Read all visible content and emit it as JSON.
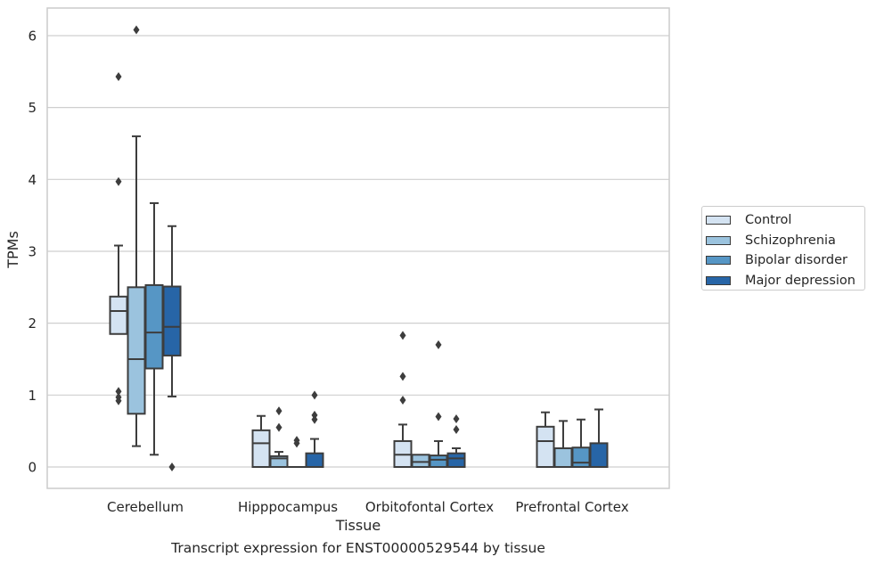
{
  "caption": "Transcript expression for ENST00000529544 by tissue",
  "chart_data": {
    "type": "boxplot",
    "xlabel": "Tissue",
    "ylabel": "TPMs",
    "ylim": [
      -0.3,
      6.4
    ],
    "yticks": [
      0,
      1,
      2,
      3,
      4,
      5,
      6
    ],
    "grid": "horizontal",
    "legend_position": "right",
    "categories": [
      "Cerebellum",
      "Hipppocampus",
      "Orbitofontal Cortex",
      "Prefrontal Cortex"
    ],
    "series": [
      {
        "name": "Control",
        "color": "#d4e3f2",
        "boxes": [
          {
            "whislo": 1.85,
            "q1": 1.85,
            "med": 2.17,
            "q3": 2.37,
            "whishi": 3.08,
            "fliers": [
              5.43,
              3.97,
              1.05,
              0.97,
              0.92
            ]
          },
          {
            "whislo": 0.0,
            "q1": 0.0,
            "med": 0.33,
            "q3": 0.51,
            "whishi": 0.71,
            "fliers": []
          },
          {
            "whislo": 0.0,
            "q1": 0.0,
            "med": 0.17,
            "q3": 0.36,
            "whishi": 0.59,
            "fliers": [
              1.83,
              1.26,
              0.93
            ]
          },
          {
            "whislo": 0.0,
            "q1": 0.0,
            "med": 0.36,
            "q3": 0.56,
            "whishi": 0.76,
            "fliers": []
          }
        ]
      },
      {
        "name": "Schizophrenia",
        "color": "#9bc3de",
        "boxes": [
          {
            "whislo": 0.29,
            "q1": 0.74,
            "med": 1.5,
            "q3": 2.5,
            "whishi": 4.6,
            "fliers": [
              6.08
            ]
          },
          {
            "whislo": 0.0,
            "q1": 0.0,
            "med": 0.12,
            "q3": 0.15,
            "whishi": 0.21,
            "fliers": [
              0.78,
              0.55
            ]
          },
          {
            "whislo": 0.0,
            "q1": 0.0,
            "med": 0.07,
            "q3": 0.17,
            "whishi": 0.17,
            "fliers": []
          },
          {
            "whislo": 0.0,
            "q1": 0.0,
            "med": 0.0,
            "q3": 0.26,
            "whishi": 0.64,
            "fliers": []
          }
        ]
      },
      {
        "name": "Bipolar disorder",
        "color": "#5696c5",
        "boxes": [
          {
            "whislo": 0.17,
            "q1": 1.37,
            "med": 1.87,
            "q3": 2.53,
            "whishi": 3.67,
            "fliers": []
          },
          {
            "whislo": 0.0,
            "q1": 0.0,
            "med": 0.0,
            "q3": 0.0,
            "whishi": 0.0,
            "fliers": [
              0.37,
              0.33
            ]
          },
          {
            "whislo": 0.0,
            "q1": 0.0,
            "med": 0.1,
            "q3": 0.16,
            "whishi": 0.36,
            "fliers": [
              1.7,
              0.7
            ]
          },
          {
            "whislo": 0.0,
            "q1": 0.0,
            "med": 0.06,
            "q3": 0.27,
            "whishi": 0.66,
            "fliers": []
          }
        ]
      },
      {
        "name": "Major depression",
        "color": "#2765a7",
        "boxes": [
          {
            "whislo": 0.98,
            "q1": 1.55,
            "med": 1.95,
            "q3": 2.51,
            "whishi": 3.35,
            "fliers": [
              0.0
            ]
          },
          {
            "whislo": 0.0,
            "q1": 0.0,
            "med": 0.0,
            "q3": 0.19,
            "whishi": 0.39,
            "fliers": [
              1.0,
              0.72,
              0.66
            ]
          },
          {
            "whislo": 0.0,
            "q1": 0.0,
            "med": 0.12,
            "q3": 0.19,
            "whishi": 0.26,
            "fliers": [
              0.67,
              0.52
            ]
          },
          {
            "whislo": 0.0,
            "q1": 0.0,
            "med": 0.0,
            "q3": 0.33,
            "whishi": 0.8,
            "fliers": []
          }
        ]
      }
    ]
  }
}
